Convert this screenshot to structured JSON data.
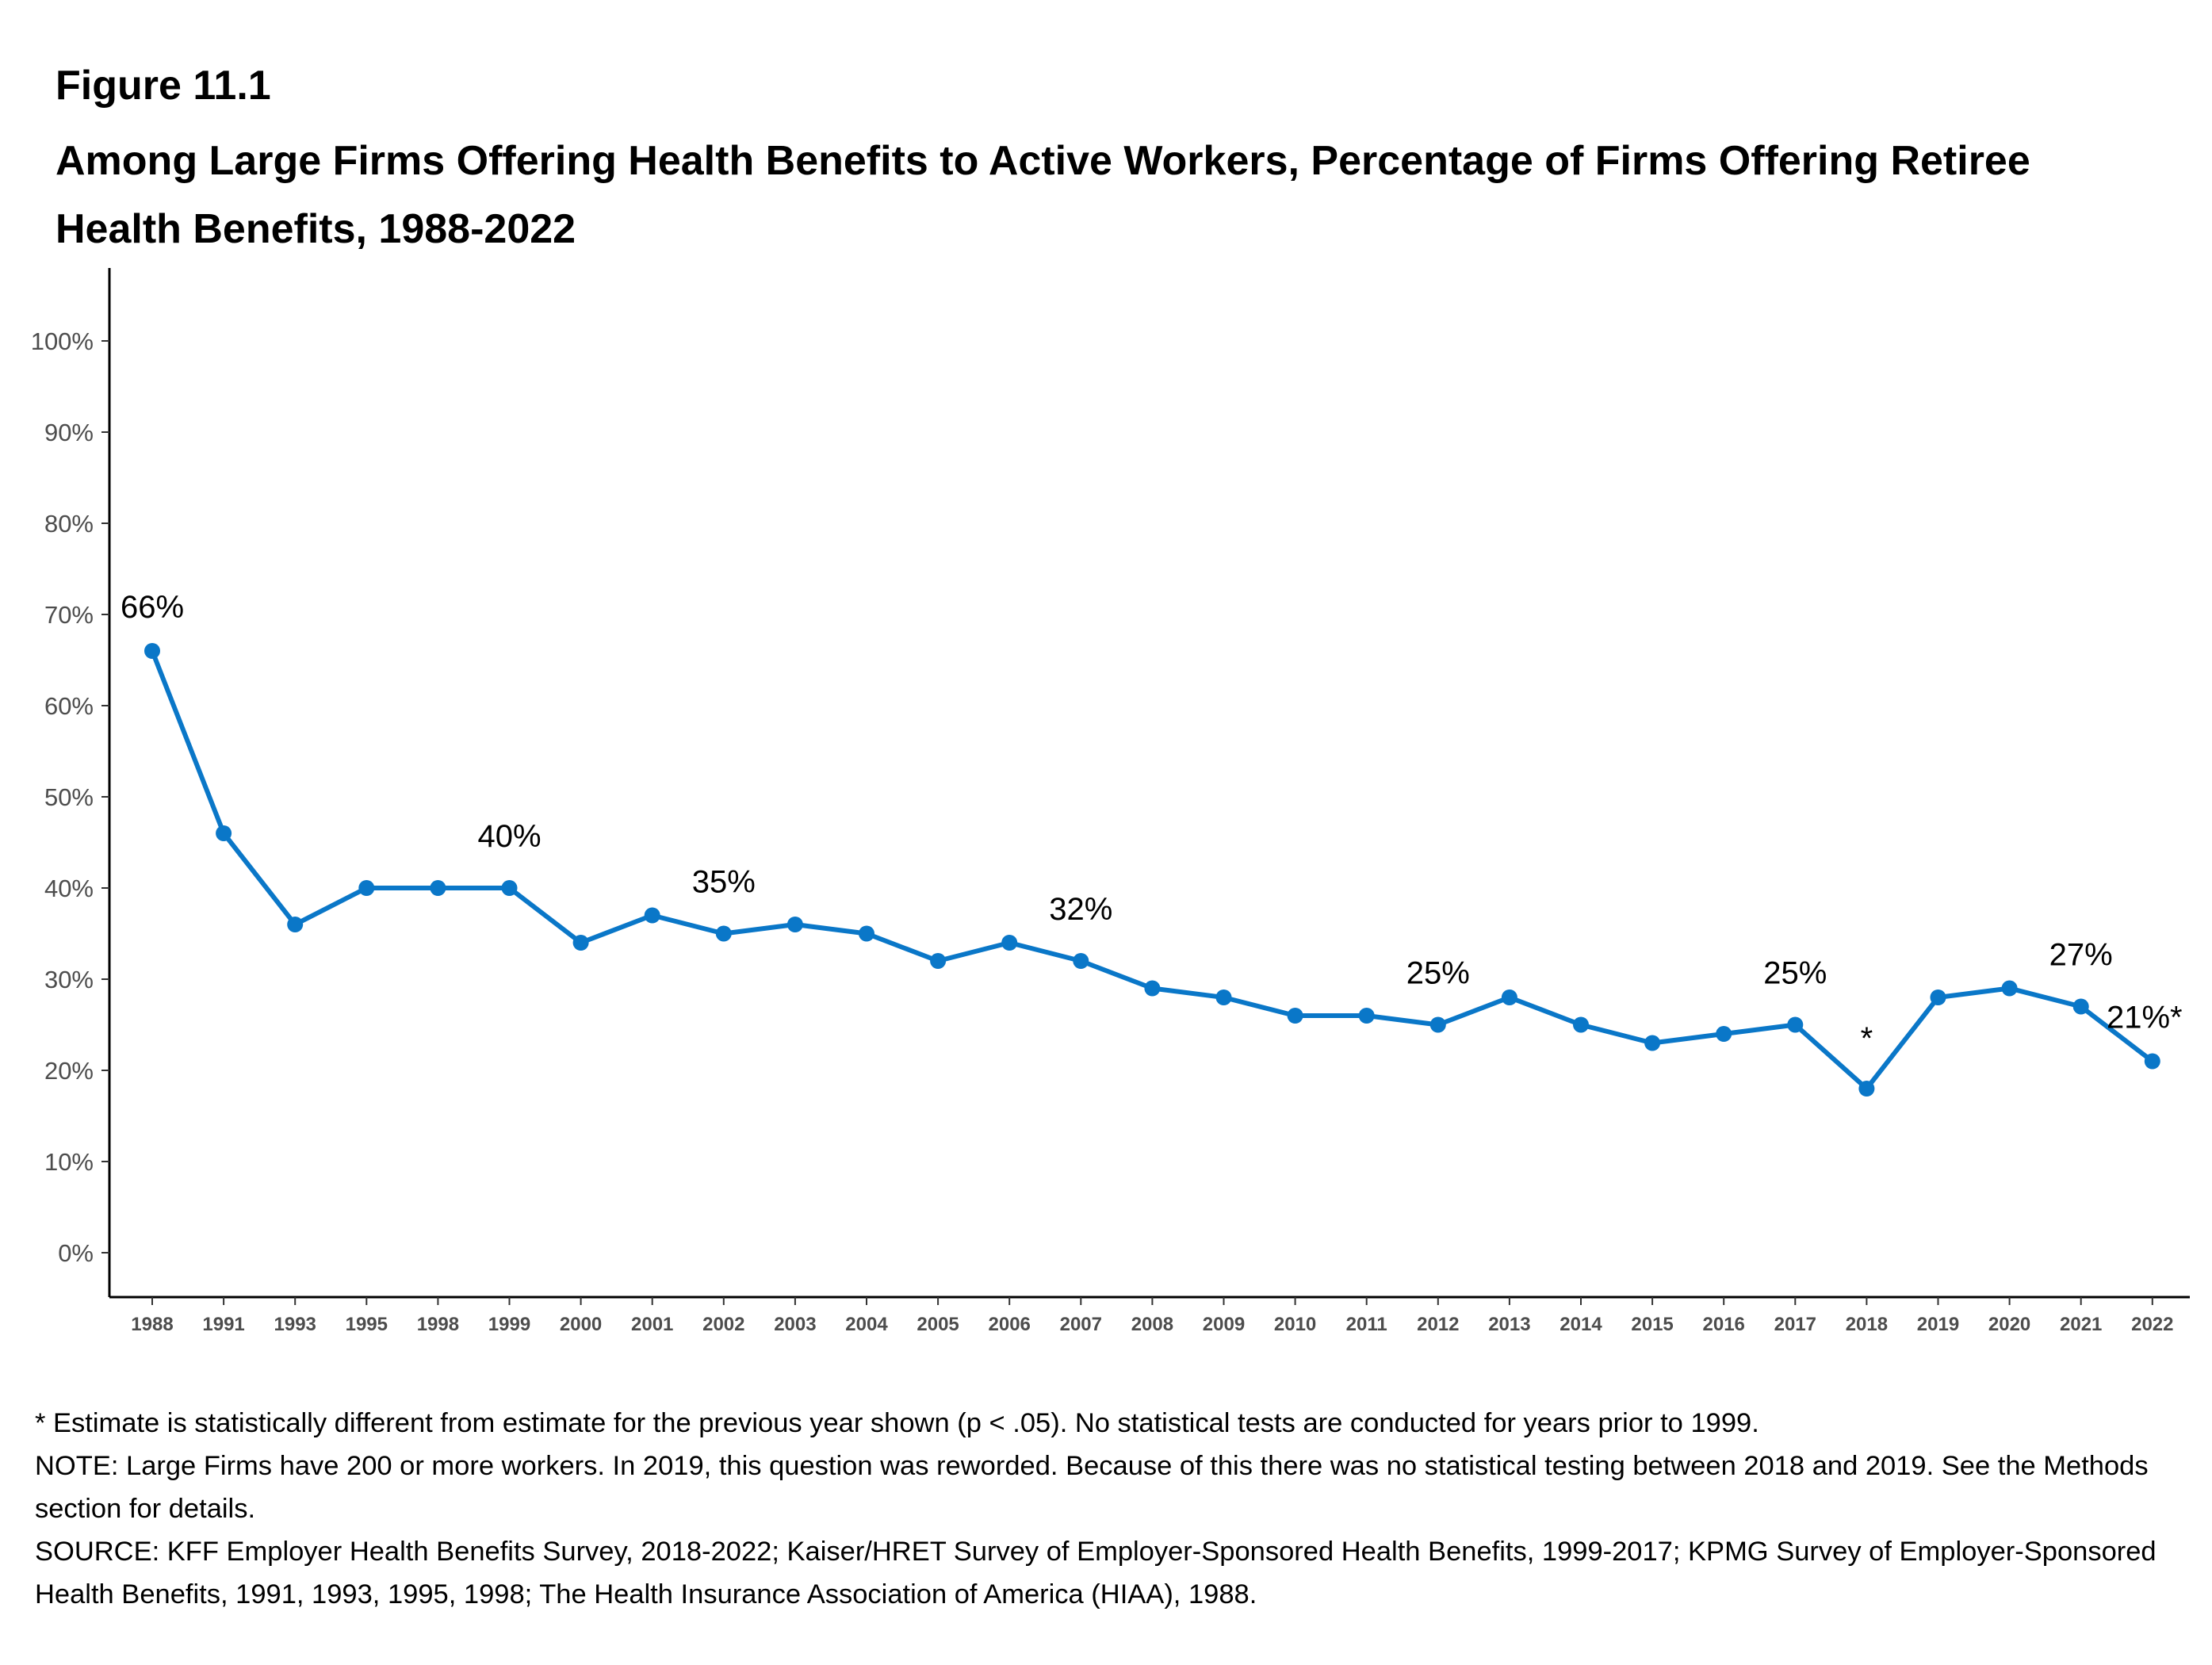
{
  "figure_label": "Figure 11.1",
  "figure_title": "Among Large Firms Offering Health Benefits to Active Workers, Percentage of Firms Offering Retiree Health Benefits, 1988-2022",
  "chart_data": {
    "type": "line",
    "categories": [
      "1988",
      "1991",
      "1993",
      "1995",
      "1998",
      "1999",
      "2000",
      "2001",
      "2002",
      "2003",
      "2004",
      "2005",
      "2006",
      "2007",
      "2008",
      "2009",
      "2010",
      "2011",
      "2012",
      "2013",
      "2014",
      "2015",
      "2016",
      "2017",
      "2018",
      "2019",
      "2020",
      "2021",
      "2022"
    ],
    "series": [
      {
        "values": [
          66,
          46,
          36,
          40,
          40,
          40,
          34,
          37,
          35,
          36,
          35,
          32,
          34,
          32,
          29,
          28,
          26,
          26,
          25,
          28,
          25,
          23,
          24,
          25,
          18,
          28,
          29,
          27,
          21
        ]
      }
    ],
    "data_labels": [
      {
        "category": "1988",
        "text": "66%"
      },
      {
        "category": "1999",
        "text": "40%"
      },
      {
        "category": "2002",
        "text": "35%"
      },
      {
        "category": "2007",
        "text": "32%"
      },
      {
        "category": "2012",
        "text": "25%"
      },
      {
        "category": "2017",
        "text": "25%"
      },
      {
        "category": "2018",
        "text": "*"
      },
      {
        "category": "2021",
        "text": "27%"
      },
      {
        "category": "2022",
        "text": "21%*"
      }
    ],
    "yticks": [
      "0%",
      "10%",
      "20%",
      "30%",
      "40%",
      "50%",
      "60%",
      "70%",
      "80%",
      "90%",
      "100%"
    ],
    "ylim": [
      0,
      100
    ],
    "grid": false,
    "line_color": "#0a77c8"
  },
  "notes": [
    "* Estimate is statistically different from estimate for the previous year shown (p < .05). No statistical tests are conducted for years prior to 1999.",
    "NOTE: Large Firms have 200 or more workers.  In 2019, this question was reworded.  Because of this there was no statistical testing between 2018 and 2019.  See the Methods section for details.",
    "SOURCE: KFF Employer Health Benefits Survey, 2018-2022; Kaiser/HRET Survey of Employer-Sponsored Health Benefits, 1999-2017; KPMG Survey of Employer-Sponsored Health Benefits, 1991, 1993, 1995, 1998; The Health Insurance Association of America (HIAA), 1988."
  ]
}
